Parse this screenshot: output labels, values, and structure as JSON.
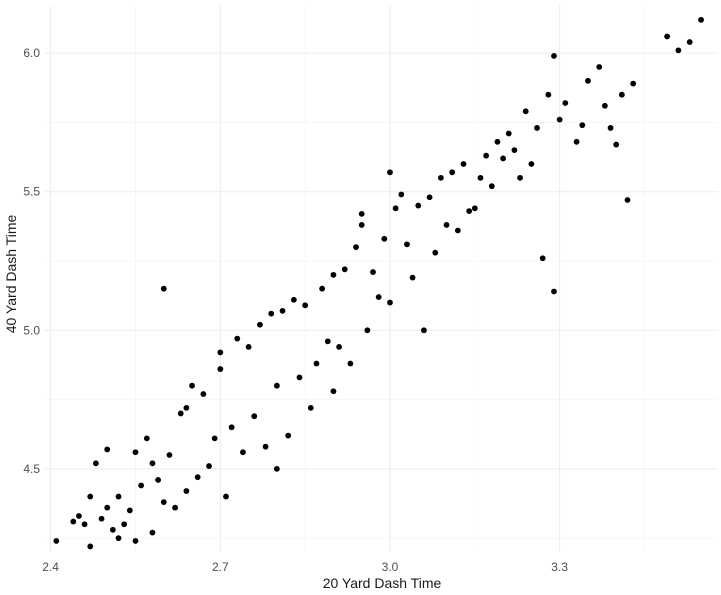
{
  "chart_data": {
    "type": "scatter",
    "title": "",
    "xlabel": "20 Yard Dash Time",
    "ylabel": "40 Yard Dash Time",
    "xlim": [
      2.39,
      3.58
    ],
    "ylim": [
      4.2,
      6.17
    ],
    "x_ticks": [
      2.4,
      2.7,
      3.0,
      3.3
    ],
    "x_tick_labels": [
      "2.4",
      "2.7",
      "3.0",
      "3.3"
    ],
    "y_ticks": [
      4.5,
      5.0,
      5.5,
      6.0
    ],
    "y_tick_labels": [
      "4.5",
      "5.0",
      "5.5",
      "6.0"
    ],
    "grid": true,
    "legend": "none",
    "point_color": "#000000",
    "points": [
      [
        2.41,
        4.24
      ],
      [
        2.44,
        4.31
      ],
      [
        2.45,
        4.33
      ],
      [
        2.46,
        4.3
      ],
      [
        2.47,
        4.22
      ],
      [
        2.47,
        4.4
      ],
      [
        2.48,
        4.52
      ],
      [
        2.49,
        4.32
      ],
      [
        2.5,
        4.57
      ],
      [
        2.5,
        4.36
      ],
      [
        2.51,
        4.28
      ],
      [
        2.52,
        4.25
      ],
      [
        2.52,
        4.4
      ],
      [
        2.53,
        4.3
      ],
      [
        2.54,
        4.35
      ],
      [
        2.55,
        4.56
      ],
      [
        2.55,
        4.24
      ],
      [
        2.56,
        4.44
      ],
      [
        2.57,
        4.61
      ],
      [
        2.58,
        4.27
      ],
      [
        2.58,
        4.52
      ],
      [
        2.59,
        4.46
      ],
      [
        2.6,
        5.15
      ],
      [
        2.6,
        4.38
      ],
      [
        2.61,
        4.55
      ],
      [
        2.62,
        4.36
      ],
      [
        2.63,
        4.7
      ],
      [
        2.64,
        4.72
      ],
      [
        2.64,
        4.42
      ],
      [
        2.65,
        4.8
      ],
      [
        2.66,
        4.47
      ],
      [
        2.67,
        4.77
      ],
      [
        2.68,
        4.51
      ],
      [
        2.69,
        4.61
      ],
      [
        2.7,
        4.86
      ],
      [
        2.7,
        4.92
      ],
      [
        2.71,
        4.4
      ],
      [
        2.72,
        4.65
      ],
      [
        2.73,
        4.97
      ],
      [
        2.74,
        4.56
      ],
      [
        2.75,
        4.94
      ],
      [
        2.76,
        4.69
      ],
      [
        2.77,
        5.02
      ],
      [
        2.78,
        4.58
      ],
      [
        2.79,
        5.06
      ],
      [
        2.8,
        4.5
      ],
      [
        2.8,
        4.8
      ],
      [
        2.81,
        5.07
      ],
      [
        2.82,
        4.62
      ],
      [
        2.83,
        5.11
      ],
      [
        2.84,
        4.83
      ],
      [
        2.85,
        5.09
      ],
      [
        2.86,
        4.72
      ],
      [
        2.87,
        4.88
      ],
      [
        2.88,
        5.15
      ],
      [
        2.89,
        4.96
      ],
      [
        2.9,
        4.78
      ],
      [
        2.9,
        5.2
      ],
      [
        2.91,
        4.94
      ],
      [
        2.92,
        5.22
      ],
      [
        2.93,
        4.88
      ],
      [
        2.94,
        5.3
      ],
      [
        2.95,
        5.42
      ],
      [
        2.95,
        5.38
      ],
      [
        2.96,
        5.0
      ],
      [
        2.97,
        5.21
      ],
      [
        2.98,
        5.12
      ],
      [
        2.99,
        5.33
      ],
      [
        3.0,
        5.57
      ],
      [
        3.0,
        5.1
      ],
      [
        3.01,
        5.44
      ],
      [
        3.02,
        5.49
      ],
      [
        3.03,
        5.31
      ],
      [
        3.04,
        5.19
      ],
      [
        3.05,
        5.45
      ],
      [
        3.06,
        5.0
      ],
      [
        3.07,
        5.48
      ],
      [
        3.08,
        5.28
      ],
      [
        3.09,
        5.55
      ],
      [
        3.1,
        5.38
      ],
      [
        3.11,
        5.57
      ],
      [
        3.12,
        5.36
      ],
      [
        3.13,
        5.6
      ],
      [
        3.14,
        5.43
      ],
      [
        3.15,
        5.44
      ],
      [
        3.16,
        5.55
      ],
      [
        3.17,
        5.63
      ],
      [
        3.18,
        5.52
      ],
      [
        3.19,
        5.68
      ],
      [
        3.2,
        5.62
      ],
      [
        3.21,
        5.71
      ],
      [
        3.22,
        5.65
      ],
      [
        3.23,
        5.55
      ],
      [
        3.24,
        5.79
      ],
      [
        3.25,
        5.6
      ],
      [
        3.26,
        5.73
      ],
      [
        3.27,
        5.26
      ],
      [
        3.28,
        5.85
      ],
      [
        3.29,
        5.99
      ],
      [
        3.29,
        5.14
      ],
      [
        3.3,
        5.76
      ],
      [
        3.31,
        5.82
      ],
      [
        3.33,
        5.68
      ],
      [
        3.34,
        5.74
      ],
      [
        3.35,
        5.9
      ],
      [
        3.37,
        5.95
      ],
      [
        3.38,
        5.81
      ],
      [
        3.39,
        5.73
      ],
      [
        3.4,
        5.67
      ],
      [
        3.41,
        5.85
      ],
      [
        3.42,
        5.47
      ],
      [
        3.43,
        5.89
      ],
      [
        3.49,
        6.06
      ],
      [
        3.51,
        6.01
      ],
      [
        3.53,
        6.04
      ],
      [
        3.55,
        6.12
      ]
    ]
  }
}
